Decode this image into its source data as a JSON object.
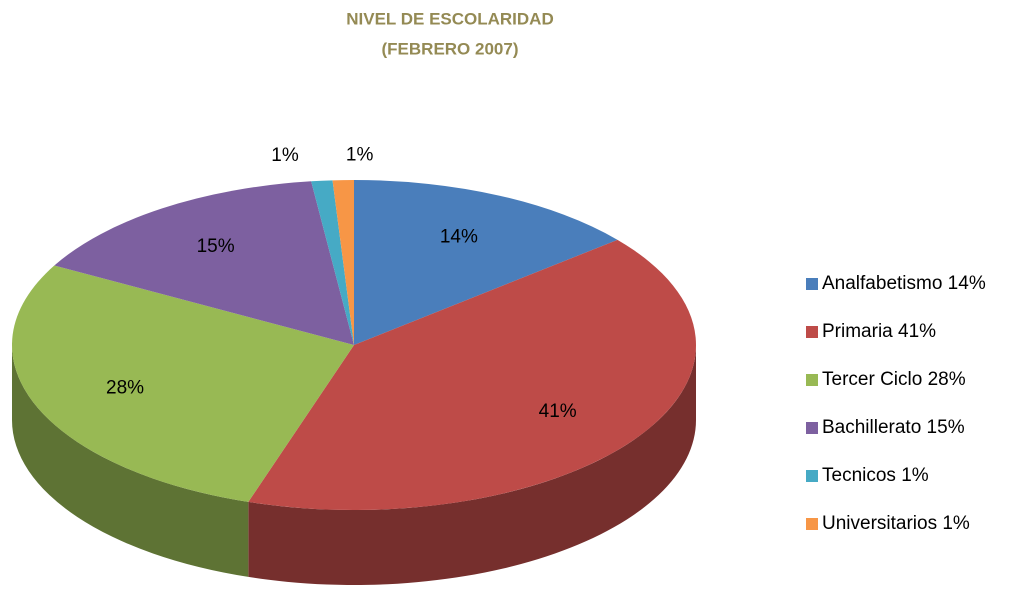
{
  "chart_data": {
    "type": "pie",
    "title": "NIVEL DE ESCOLARIDAD",
    "subtitle": "(FEBRERO 2007)",
    "categories": [
      "Analfabetismo 14%",
      "Primaria 41%",
      "Tercer Ciclo  28%",
      "Bachillerato  15%",
      "Tecnicos  1%",
      "Universitarios  1%"
    ],
    "values": [
      14,
      41,
      28,
      15,
      1,
      1
    ],
    "value_labels": [
      "14%",
      "41%",
      "28%",
      "15%",
      "1%",
      "1%"
    ],
    "colors": [
      "#4a7ebb",
      "#be4b48",
      "#98b954",
      "#7d60a0",
      "#46aac5",
      "#f79646"
    ],
    "legend": "right"
  }
}
